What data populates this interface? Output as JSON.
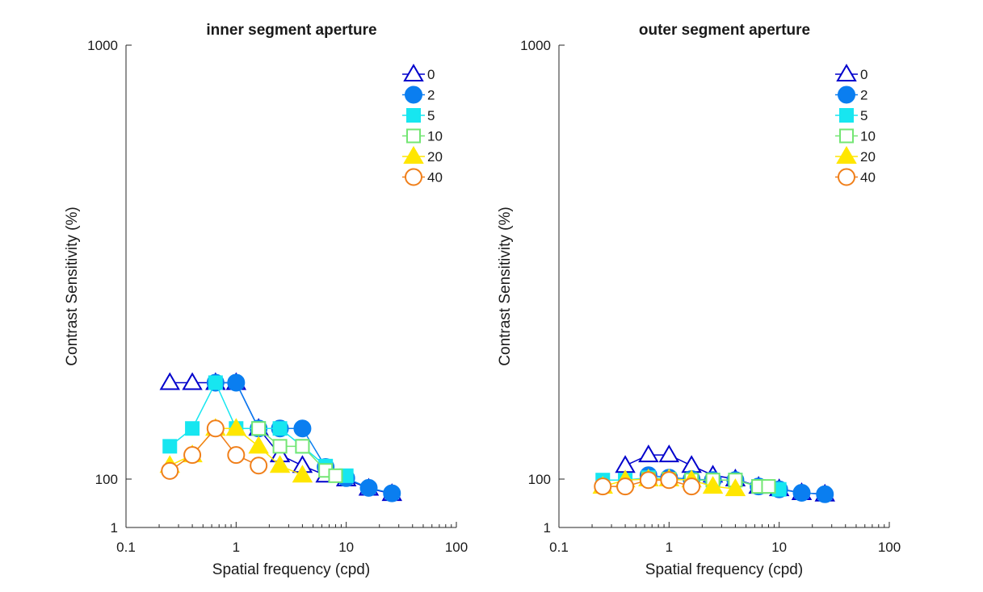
{
  "chart_data": [
    {
      "type": "line",
      "title": "inner segment aperture",
      "xlabel": "Spatial frequency (cpd)",
      "ylabel": "Contrast Sensitivity (%)",
      "xscale": "log",
      "xlim": [
        0.1,
        100
      ],
      "x_ticks": [
        "0.1",
        "1",
        "10",
        "100"
      ],
      "y_ticks": [
        "1",
        "100",
        "1000"
      ],
      "legend": "top-right",
      "grid": false,
      "series": [
        {
          "name": "0",
          "marker": "triangle",
          "filled": false,
          "color": "#0000cc",
          "x": [
            0.25,
            0.4,
            0.65,
            1,
            1.6,
            2.5,
            4,
            6.5,
            10,
            16,
            26
          ],
          "y": [
            300,
            300,
            300,
            300,
            205,
            150,
            128,
            108,
            100,
            81,
            70
          ]
        },
        {
          "name": "2",
          "marker": "circle",
          "filled": true,
          "color": "#0a7ef0",
          "x": [
            0.65,
            1,
            1.6,
            2.5,
            4,
            6.5,
            10,
            16,
            26
          ],
          "y": [
            300,
            300,
            205,
            205,
            205,
            125,
            102,
            82,
            71
          ]
        },
        {
          "name": "5",
          "marker": "square",
          "filled": true,
          "color": "#17e6f0",
          "x": [
            0.25,
            0.4,
            0.65,
            1,
            1.6,
            2.5,
            4,
            6.5,
            10
          ],
          "y": [
            168,
            205,
            300,
            205,
            205,
            205,
            168,
            127,
            107
          ]
        },
        {
          "name": "10",
          "marker": "square",
          "filled": false,
          "color": "#73e673",
          "x": [
            1.6,
            2.5,
            4,
            6.5,
            8
          ],
          "y": [
            205,
            168,
            168,
            118,
            107
          ]
        },
        {
          "name": "20",
          "marker": "triangle",
          "filled": true,
          "color": "#ffe600",
          "x": [
            0.25,
            0.4,
            0.65,
            1,
            1.6,
            2.5,
            4
          ],
          "y": [
            128,
            150,
            205,
            205,
            168,
            128,
            108
          ]
        },
        {
          "name": "40",
          "marker": "circle",
          "filled": false,
          "color": "#f07f1a",
          "x": [
            0.25,
            0.4,
            0.65,
            1,
            1.6
          ],
          "y": [
            117,
            150,
            205,
            150,
            128
          ]
        }
      ]
    },
    {
      "type": "line",
      "title": "outer segment aperture",
      "xlabel": "Spatial frequency (cpd)",
      "ylabel": "Contrast Sensitivity (%)",
      "xscale": "log",
      "xlim": [
        0.1,
        100
      ],
      "x_ticks": [
        "0.1",
        "1",
        "10",
        "100"
      ],
      "y_ticks": [
        "1",
        "100",
        "1000"
      ],
      "legend": "top-right",
      "grid": false,
      "series": [
        {
          "name": "0",
          "marker": "triangle",
          "filled": false,
          "color": "#0000cc",
          "x": [
            0.4,
            0.65,
            1,
            1.6,
            2.5,
            4,
            6.5,
            10,
            16,
            26
          ],
          "y": [
            128,
            150,
            150,
            128,
            108,
            100,
            85,
            80,
            72,
            69
          ]
        },
        {
          "name": "2",
          "marker": "circle",
          "filled": true,
          "color": "#0a7ef0",
          "x": [
            0.65,
            1,
            1.6,
            2.5,
            4,
            6.5,
            10,
            16,
            26
          ],
          "y": [
            108,
            103,
            100,
            98,
            98,
            85,
            79,
            72,
            69
          ]
        },
        {
          "name": "5",
          "marker": "square",
          "filled": true,
          "color": "#17e6f0",
          "x": [
            0.25,
            0.4,
            0.65,
            1,
            1.6,
            2.5,
            4,
            6.5,
            10
          ],
          "y": [
            98,
            98,
            103,
            100,
            98,
            98,
            98,
            85,
            79
          ]
        },
        {
          "name": "10",
          "marker": "square",
          "filled": false,
          "color": "#73e673",
          "x": [
            0.65,
            1,
            1.6,
            2.5,
            4,
            6.5,
            8
          ],
          "y": [
            100,
            100,
            98,
            98,
            98,
            85,
            85
          ]
        },
        {
          "name": "20",
          "marker": "triangle",
          "filled": true,
          "color": "#ffe600",
          "x": [
            0.25,
            0.4,
            0.65,
            1,
            1.6,
            2.5,
            4
          ],
          "y": [
            85,
            98,
            100,
            100,
            98,
            85,
            80
          ]
        },
        {
          "name": "40",
          "marker": "circle",
          "filled": false,
          "color": "#f07f1a",
          "x": [
            0.25,
            0.4,
            0.65,
            1,
            1.6
          ],
          "y": [
            85,
            85,
            98,
            98,
            85
          ]
        }
      ]
    }
  ]
}
